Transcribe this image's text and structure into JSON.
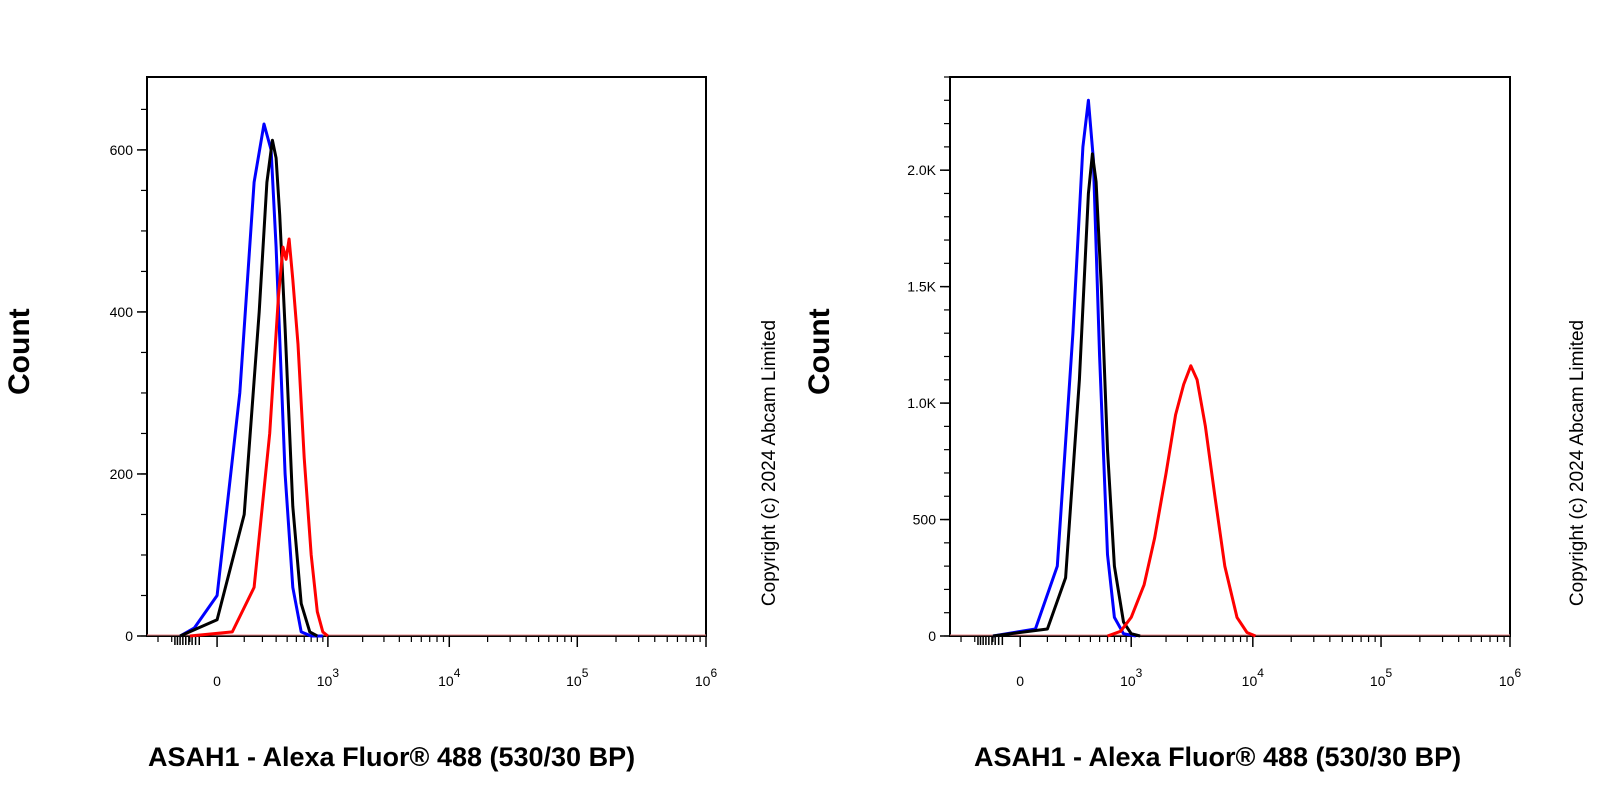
{
  "chart_data": [
    {
      "type": "line",
      "xlabel": "ASAH1 - Alexa Fluor® 488 (530/30 BP)",
      "ylabel": "Count",
      "watermark": "Copyright (c) 2024 Abcam Limited",
      "x_scale": "biexponential",
      "xlim": [
        -400,
        1000000
      ],
      "ylim": [
        0,
        690
      ],
      "x_tick_labels": [
        {
          "value": 0,
          "base": "0",
          "exp": ""
        },
        {
          "value": 1000,
          "base": "10",
          "exp": "3"
        },
        {
          "value": 10000,
          "base": "10",
          "exp": "4"
        },
        {
          "value": 100000,
          "base": "10",
          "exp": "5"
        },
        {
          "value": 1000000,
          "base": "10",
          "exp": "6"
        }
      ],
      "y_tick_labels": [
        {
          "value": 0,
          "label": "0"
        },
        {
          "value": 200,
          "label": "200"
        },
        {
          "value": 400,
          "label": "400"
        },
        {
          "value": 600,
          "label": "600"
        }
      ],
      "series": [
        {
          "color": "#0000ff",
          "x": [
            -150,
            -80,
            0,
            80,
            150,
            210,
            260,
            300,
            380,
            460,
            560,
            700,
            900
          ],
          "y": [
            0,
            10,
            50,
            300,
            560,
            632,
            600,
            480,
            200,
            60,
            5,
            0,
            0
          ]
        },
        {
          "color": "#000000",
          "x": [
            -150,
            0,
            100,
            180,
            230,
            270,
            300,
            330,
            380,
            460,
            560,
            680,
            800
          ],
          "y": [
            0,
            20,
            150,
            400,
            560,
            612,
            590,
            520,
            380,
            160,
            40,
            5,
            0
          ]
        },
        {
          "color": "#ff0000",
          "x": [
            -100,
            50,
            150,
            250,
            320,
            360,
            390,
            420,
            460,
            520,
            600,
            700,
            800,
            900,
            1000
          ],
          "y": [
            0,
            5,
            60,
            250,
            420,
            480,
            465,
            490,
            440,
            360,
            220,
            100,
            30,
            5,
            0
          ]
        }
      ]
    },
    {
      "type": "line",
      "xlabel": "ASAH1 - Alexa Fluor® 488 (530/30 BP)",
      "ylabel": "Count",
      "watermark": "Copyright (c) 2024 Abcam Limited",
      "x_scale": "biexponential",
      "xlim": [
        -400,
        1000000
      ],
      "ylim": [
        0,
        2400
      ],
      "x_tick_labels": [
        {
          "value": 0,
          "base": "0",
          "exp": ""
        },
        {
          "value": 1000,
          "base": "10",
          "exp": "3"
        },
        {
          "value": 10000,
          "base": "10",
          "exp": "4"
        },
        {
          "value": 100000,
          "base": "10",
          "exp": "5"
        },
        {
          "value": 1000000,
          "base": "10",
          "exp": "6"
        }
      ],
      "y_tick_labels": [
        {
          "value": 0,
          "label": "0"
        },
        {
          "value": 500,
          "label": "500"
        },
        {
          "value": 1000,
          "label": "1.0K"
        },
        {
          "value": 1500,
          "label": "1.5K"
        },
        {
          "value": 2000,
          "label": "2.0K"
        }
      ],
      "series": [
        {
          "color": "#0000ff",
          "x": [
            -100,
            50,
            150,
            250,
            330,
            380,
            430,
            500,
            600,
            700,
            850,
            1100
          ],
          "y": [
            0,
            30,
            300,
            1300,
            2100,
            2300,
            2050,
            1200,
            350,
            80,
            10,
            0
          ]
        },
        {
          "color": "#000000",
          "x": [
            -100,
            100,
            200,
            300,
            380,
            420,
            460,
            520,
            600,
            700,
            850,
            1000,
            1200
          ],
          "y": [
            0,
            30,
            250,
            1100,
            1900,
            2070,
            1950,
            1500,
            800,
            300,
            60,
            10,
            0
          ]
        },
        {
          "color": "#ff0000",
          "x": [
            600,
            800,
            1000,
            1300,
            1600,
            2000,
            2400,
            2800,
            3200,
            3600,
            4200,
            5000,
            6000,
            7500,
            9000,
            10500
          ],
          "y": [
            0,
            20,
            80,
            220,
            420,
            700,
            950,
            1080,
            1160,
            1100,
            900,
            600,
            300,
            80,
            15,
            0
          ]
        }
      ]
    }
  ]
}
